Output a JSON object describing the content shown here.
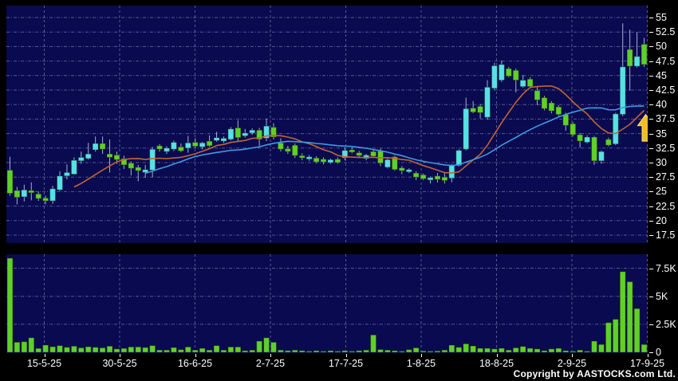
{
  "meta": {
    "copyright": "Copyright by AASTOCKS.com Ltd."
  },
  "colors": {
    "page_background": "#000000",
    "pane_background": "#0A0A50",
    "grid": "#9398C4",
    "up_candle": "#57E1E4",
    "down_candle": "#5FD028",
    "wick": "#A9AECD",
    "volume_bar": "#5FD028",
    "ma_fast": "#C06532",
    "ma_slow": "#3E9AE0",
    "arrow": "#F2BC24",
    "axis_text": "#FFFFFF"
  },
  "chart_data": {
    "type": "candlestick",
    "title": "",
    "legend_position": "none",
    "grid": true,
    "price_axis_side": "right",
    "price_ticks": [
      55,
      52.5,
      50,
      47.5,
      45,
      42.5,
      40,
      37.5,
      35,
      32.5,
      30,
      27.5,
      25,
      22.5,
      20,
      17.5
    ],
    "volume_ticks": [
      {
        "label": "7.5K",
        "value": 7500
      },
      {
        "label": "5K",
        "value": 5000
      },
      {
        "label": "2.5K",
        "value": 2500
      },
      {
        "label": "0",
        "value": 0
      }
    ],
    "dates": [
      "15-5-25",
      "30-5-25",
      "16-6-25",
      "2-7-25",
      "17-7-25",
      "1-8-25",
      "18-8-25",
      "2-9-25",
      "17-9-25"
    ],
    "ohlc": [
      [
        28.7,
        31.0,
        24.3,
        24.7
      ],
      [
        25.2,
        25.8,
        22.8,
        24.0
      ],
      [
        24.1,
        26.2,
        23.3,
        25.3
      ],
      [
        25.2,
        26.6,
        23.5,
        24.8
      ],
      [
        24.6,
        25.0,
        23.4,
        23.8
      ],
      [
        23.9,
        24.3,
        22.8,
        23.4
      ],
      [
        23.4,
        26.0,
        22.9,
        25.5
      ],
      [
        25.3,
        28.5,
        25.1,
        27.7
      ],
      [
        27.7,
        29.7,
        27.1,
        28.3
      ],
      [
        28.0,
        30.9,
        27.9,
        30.4
      ],
      [
        30.3,
        31.9,
        29.8,
        30.9
      ],
      [
        30.7,
        33.4,
        30.5,
        31.5
      ],
      [
        32.2,
        34.5,
        31.9,
        33.3
      ],
      [
        33.3,
        34.5,
        31.5,
        32.3
      ],
      [
        31.5,
        34.0,
        28.3,
        30.9
      ],
      [
        31.3,
        31.9,
        29.8,
        30.5
      ],
      [
        30.7,
        31.2,
        28.9,
        29.6
      ],
      [
        29.9,
        30.2,
        27.8,
        29.0
      ],
      [
        29.2,
        29.6,
        26.8,
        28.6
      ],
      [
        28.3,
        29.6,
        27.4,
        28.8
      ],
      [
        28.7,
        32.7,
        27.5,
        32.3
      ],
      [
        32.9,
        33.2,
        31.9,
        32.3
      ],
      [
        31.9,
        32.8,
        31.5,
        32.5
      ],
      [
        32.3,
        33.8,
        32.0,
        33.5
      ],
      [
        32.7,
        33.3,
        31.8,
        32.0
      ],
      [
        32.5,
        34.6,
        31.7,
        33.4
      ],
      [
        33.5,
        34.2,
        32.5,
        32.8
      ],
      [
        32.7,
        33.6,
        32.3,
        33.4
      ],
      [
        33.7,
        34.7,
        32.7,
        32.9
      ],
      [
        33.8,
        35.3,
        33.6,
        34.3
      ],
      [
        33.7,
        34.5,
        33.4,
        34.2
      ],
      [
        34.0,
        36.1,
        33.8,
        35.8
      ],
      [
        36.0,
        37.3,
        33.7,
        34.3
      ],
      [
        34.6,
        35.8,
        34.3,
        35.1
      ],
      [
        35.1,
        35.9,
        34.8,
        35.6
      ],
      [
        35.6,
        36.0,
        32.9,
        34.0
      ],
      [
        34.2,
        37.6,
        33.7,
        36.3
      ],
      [
        36.1,
        36.8,
        34.0,
        34.4
      ],
      [
        33.4,
        34.2,
        31.9,
        32.3
      ],
      [
        32.4,
        32.9,
        31.5,
        31.9
      ],
      [
        33.0,
        33.3,
        30.8,
        31.2
      ],
      [
        31.2,
        31.6,
        30.4,
        30.8
      ],
      [
        30.6,
        31.3,
        30.3,
        31.0
      ],
      [
        30.8,
        31.1,
        29.9,
        30.1
      ],
      [
        30.6,
        30.9,
        29.7,
        30.1
      ],
      [
        30.0,
        30.7,
        29.8,
        30.5
      ],
      [
        30.6,
        30.9,
        29.8,
        30.0
      ],
      [
        30.8,
        32.6,
        30.4,
        32.1
      ],
      [
        32.2,
        32.6,
        31.6,
        31.8
      ],
      [
        31.7,
        32.0,
        31.0,
        31.2
      ],
      [
        30.7,
        31.5,
        30.4,
        31.3
      ],
      [
        31.9,
        32.2,
        30.9,
        31.1
      ],
      [
        32.0,
        32.4,
        29.4,
        29.9
      ],
      [
        29.2,
        30.7,
        29.0,
        30.5
      ],
      [
        31.0,
        31.2,
        28.6,
        28.8
      ],
      [
        29.1,
        29.4,
        28.0,
        28.6
      ],
      [
        28.4,
        29.0,
        28.2,
        28.8
      ],
      [
        28.2,
        28.5,
        27.0,
        27.5
      ],
      [
        27.9,
        28.1,
        27.0,
        27.2
      ],
      [
        27.0,
        27.6,
        26.4,
        27.4
      ],
      [
        27.7,
        28.2,
        26.6,
        27.1
      ],
      [
        27.5,
        28.2,
        26.4,
        26.9
      ],
      [
        27.3,
        29.7,
        26.6,
        29.5
      ],
      [
        29.5,
        32.3,
        29.3,
        32.1
      ],
      [
        32.3,
        41.2,
        32.1,
        39.3
      ],
      [
        39.4,
        40.6,
        38.5,
        38.7
      ],
      [
        39.7,
        40.1,
        37.6,
        38.6
      ],
      [
        37.8,
        44.2,
        37.4,
        43.0
      ],
      [
        42.8,
        47.2,
        42.5,
        46.7
      ],
      [
        44.2,
        47.6,
        43.9,
        46.9
      ],
      [
        46.2,
        46.5,
        44.7,
        44.9
      ],
      [
        45.9,
        46.2,
        42.1,
        44.2
      ],
      [
        43.1,
        45.1,
        42.9,
        44.2
      ],
      [
        44.4,
        44.7,
        42.8,
        43.1
      ],
      [
        42.4,
        43.0,
        39.9,
        40.8
      ],
      [
        41.2,
        41.5,
        39.0,
        39.3
      ],
      [
        40.3,
        40.6,
        38.5,
        38.9
      ],
      [
        39.6,
        39.9,
        38.0,
        38.3
      ],
      [
        38.3,
        38.6,
        35.5,
        36.4
      ],
      [
        36.7,
        37.0,
        34.5,
        34.8
      ],
      [
        34.8,
        35.1,
        32.6,
        33.7
      ],
      [
        33.5,
        34.7,
        33.3,
        34.4
      ],
      [
        34.4,
        34.6,
        29.6,
        30.3
      ],
      [
        30.3,
        32.1,
        29.8,
        31.9
      ],
      [
        34.0,
        34.3,
        32.8,
        33.0
      ],
      [
        33.2,
        38.6,
        33.0,
        38.4
      ],
      [
        38.3,
        54.0,
        38.0,
        46.5
      ],
      [
        49.5,
        52.9,
        42.4,
        46.6
      ],
      [
        46.6,
        52.5,
        46.4,
        48.3
      ],
      [
        50.4,
        51.5,
        46.5,
        46.9
      ]
    ],
    "volumes": [
      8400,
      900,
      950,
      1300,
      350,
      650,
      500,
      600,
      450,
      550,
      400,
      500,
      450,
      400,
      550,
      300,
      350,
      480,
      480,
      430,
      600,
      200,
      200,
      430,
      240,
      480,
      200,
      360,
      200,
      600,
      200,
      480,
      480,
      150,
      200,
      1000,
      1300,
      900,
      200,
      150,
      200,
      150,
      100,
      150,
      100,
      150,
      100,
      150,
      100,
      150,
      200,
      1550,
      250,
      200,
      150,
      100,
      240,
      400,
      120,
      100,
      120,
      200,
      640,
      450,
      760,
      570,
      360,
      360,
      300,
      360,
      200,
      400,
      520,
      360,
      300,
      150,
      300,
      360,
      150,
      100,
      200,
      100,
      1000,
      700,
      2650,
      2950,
      7200,
      6300,
      3900,
      700
    ],
    "moving_averages": [
      {
        "name": "ma-fast",
        "period": 10,
        "color": "#C06532"
      },
      {
        "name": "ma-slow",
        "period": 20,
        "color": "#3E9AE0"
      }
    ],
    "annotation": {
      "type": "up-arrow",
      "x_candle_index": 89,
      "price_top": 38.3,
      "price_bottom": 33.7,
      "color": "#F2BC24"
    }
  }
}
